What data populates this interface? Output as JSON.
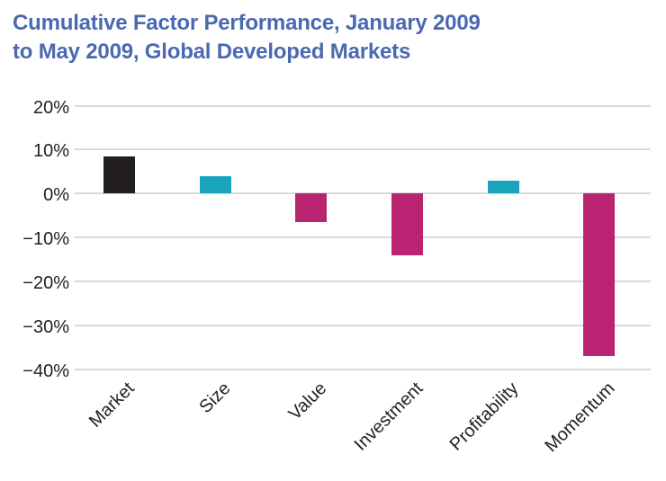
{
  "title": {
    "line1": "Cumulative Factor Performance, January 2009",
    "line2": "to May 2009, Global Developed Markets"
  },
  "colors": {
    "title": "#4a69b2",
    "axis_text": "#231f20",
    "gridline": "#d9d9d9",
    "bar_black": "#231f20",
    "bar_teal": "#1ba5bc",
    "bar_magenta": "#b92372",
    "background": "#ffffff"
  },
  "chart_data": {
    "type": "bar",
    "title": "Cumulative Factor Performance, January 2009 to May 2009, Global Developed Markets",
    "categories": [
      "Market",
      "Size",
      "Value",
      "Investment",
      "Profitability",
      "Momentum"
    ],
    "values": [
      8.5,
      4,
      -6.5,
      -14,
      3,
      -37
    ],
    "unit": "%",
    "bar_colors": [
      "#231f20",
      "#1ba5bc",
      "#b92372",
      "#b92372",
      "#1ba5bc",
      "#b92372"
    ],
    "y_ticks": [
      {
        "value": 20,
        "label": "20%"
      },
      {
        "value": 10,
        "label": "10%"
      },
      {
        "value": 0,
        "label": "0%"
      },
      {
        "value": -10,
        "label": "−10%"
      },
      {
        "value": -20,
        "label": "−20%"
      },
      {
        "value": -30,
        "label": "−30%"
      },
      {
        "value": -40,
        "label": "−40%"
      }
    ],
    "ylim": [
      -40,
      20
    ],
    "grid": true,
    "legend": "none",
    "xlabel": "",
    "ylabel": ""
  }
}
